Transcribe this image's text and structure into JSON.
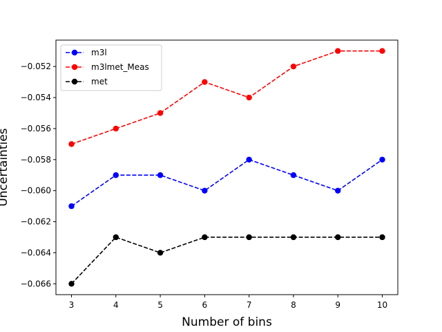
{
  "chart_data": {
    "type": "line",
    "title": "",
    "xlabel": "Number of bins",
    "ylabel": "Uncertainties",
    "x": [
      3,
      4,
      5,
      6,
      7,
      8,
      9,
      10
    ],
    "xticks": [
      "3",
      "4",
      "5",
      "6",
      "7",
      "8",
      "9",
      "10"
    ],
    "ylim": [
      -0.0667,
      -0.0503
    ],
    "yticks": [
      "−0.066",
      "−0.064",
      "−0.062",
      "−0.060",
      "−0.058",
      "−0.056",
      "−0.054",
      "−0.052"
    ],
    "ytick_values": [
      -0.066,
      -0.064,
      -0.062,
      -0.06,
      -0.058,
      -0.056,
      -0.054,
      -0.052
    ],
    "grid": false,
    "legend_position": "top-left",
    "series": [
      {
        "name": "m3l",
        "color": "#0000ff",
        "line_style": "dashed",
        "marker": "circle",
        "values": [
          -0.061,
          -0.059,
          -0.059,
          -0.06,
          -0.058,
          -0.059,
          -0.06,
          -0.058
        ]
      },
      {
        "name": "m3lmet_Meas",
        "color": "#ff0000",
        "line_style": "dashed",
        "marker": "circle",
        "values": [
          -0.057,
          -0.056,
          -0.055,
          -0.053,
          -0.054,
          -0.052,
          -0.051,
          -0.051
        ]
      },
      {
        "name": "met",
        "color": "#000000",
        "line_style": "dashed",
        "marker": "circle",
        "values": [
          -0.066,
          -0.063,
          -0.064,
          -0.063,
          -0.063,
          -0.063,
          -0.063,
          -0.063
        ]
      }
    ]
  }
}
